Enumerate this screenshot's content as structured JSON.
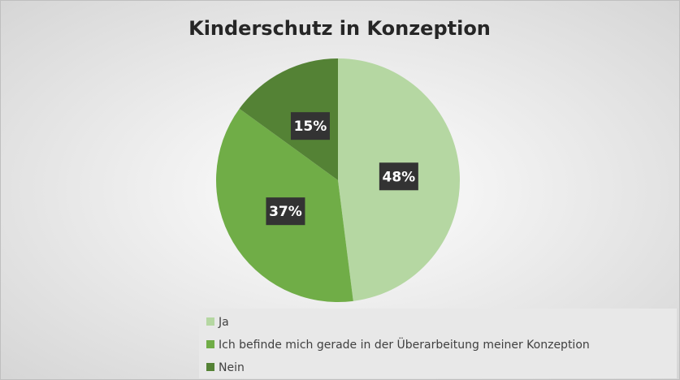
{
  "chart_data": {
    "type": "pie",
    "title": "Kinderschutz in Konzeption",
    "categories": [
      "Ja",
      "Ich befinde mich gerade in der Überarbeitung meiner Konzeption",
      "Nein"
    ],
    "values": [
      48,
      37,
      15
    ],
    "value_labels": [
      "48%",
      "37%",
      "15%"
    ],
    "colors": [
      "#b5d7a2",
      "#70ad47",
      "#548235"
    ],
    "legend": "bottom-right"
  }
}
